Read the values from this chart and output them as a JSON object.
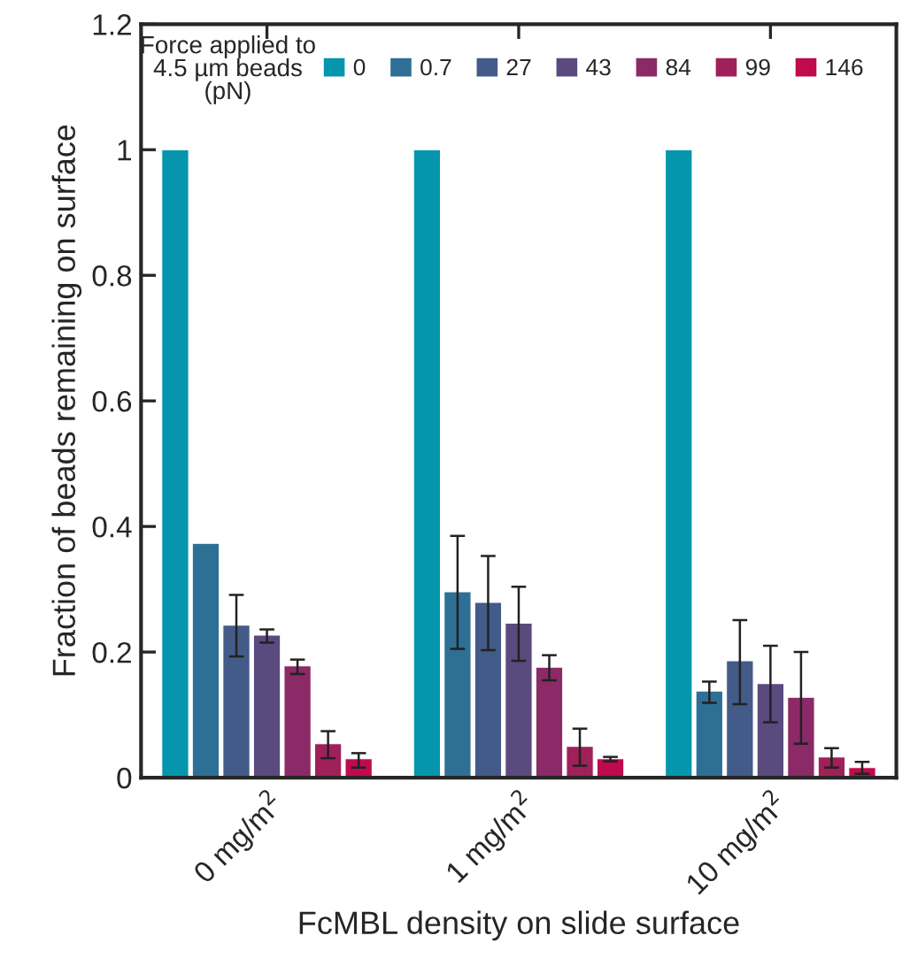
{
  "chart_data": {
    "type": "bar",
    "xlabel": "FcMBL density on slide surface",
    "ylabel": "Fraction of beads remaining on surface",
    "legend_title": "Force applied to\n4.5 µm beads\n(pN)",
    "categories": [
      "0 mg/m$^{2}$",
      "1 mg/m$^{2}$",
      "10 mg/m$^{2}$"
    ],
    "series": [
      {
        "name": "0",
        "color": "#0596ae",
        "values": [
          1,
          1,
          1
        ],
        "errors": [
          null,
          null,
          null
        ]
      },
      {
        "name": "0.7",
        "color": "#2e6f95",
        "values": [
          0.373,
          0.296,
          0.138
        ],
        "errors": [
          null,
          [
            0.205,
            0.385
          ],
          [
            0.119,
            0.153
          ]
        ]
      },
      {
        "name": "27",
        "color": "#435b88",
        "values": [
          0.243,
          0.279,
          0.186
        ],
        "errors": [
          [
            0.193,
            0.291
          ],
          [
            0.203,
            0.353
          ],
          [
            0.117,
            0.251
          ]
        ]
      },
      {
        "name": "43",
        "color": "#5b4a7e",
        "values": [
          0.227,
          0.246,
          0.15
        ],
        "errors": [
          [
            0.215,
            0.236
          ],
          [
            0.186,
            0.304
          ],
          [
            0.088,
            0.21
          ]
        ]
      },
      {
        "name": "84",
        "color": "#8b2a66",
        "values": [
          0.178,
          0.176,
          0.128
        ],
        "errors": [
          [
            0.165,
            0.188
          ],
          [
            0.155,
            0.195
          ],
          [
            0.054,
            0.2
          ]
        ]
      },
      {
        "name": "99",
        "color": "#a0205a",
        "values": [
          0.054,
          0.05,
          0.033
        ],
        "errors": [
          [
            0.031,
            0.074
          ],
          [
            0.019,
            0.078
          ],
          [
            0.016,
            0.047
          ]
        ]
      },
      {
        "name": "146",
        "color": "#bf0a4d",
        "values": [
          0.03,
          0.03,
          0.016
        ],
        "errors": [
          [
            0.016,
            0.039
          ],
          [
            0.026,
            0.033
          ],
          [
            0.006,
            0.025
          ]
        ]
      }
    ],
    "ylim": [
      0,
      1.2
    ],
    "yticks": [
      0,
      0.2,
      0.4,
      0.6,
      0.8,
      1,
      1.2
    ],
    "grid": false,
    "legend": "top right"
  }
}
